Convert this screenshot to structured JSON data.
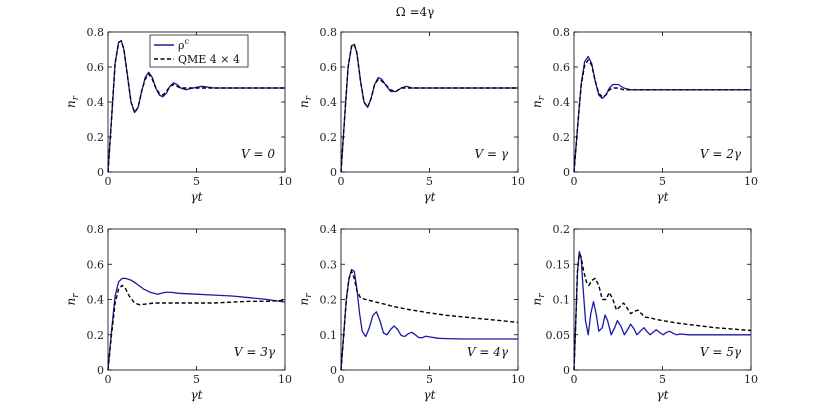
{
  "figure_title": "Ω =4γ",
  "chart_data": [
    {
      "type": "line",
      "annotation": "V = 0",
      "xlabel": "γt",
      "ylabel": "n_r",
      "xlim": [
        0,
        10
      ],
      "ylim": [
        0,
        0.8
      ],
      "xticks": [
        "0",
        "5",
        "10"
      ],
      "yticks": [
        "0",
        "0.2",
        "0.4",
        "0.6",
        "0.8"
      ],
      "legend": {
        "placement": "top-left",
        "entries": [
          "ρ^c",
          "QME 4 × 4"
        ]
      },
      "series": [
        {
          "name": "ρ^c",
          "style": "solid",
          "color": "#1a1aa6",
          "x": [
            0,
            0.2,
            0.4,
            0.6,
            0.75,
            0.9,
            1.1,
            1.3,
            1.5,
            1.7,
            1.9,
            2.1,
            2.3,
            2.5,
            2.7,
            2.9,
            3.1,
            3.3,
            3.5,
            3.7,
            3.9,
            4.1,
            4.4,
            4.8,
            5.3,
            6,
            7,
            8,
            9,
            10
          ],
          "y": [
            0,
            0.3,
            0.62,
            0.74,
            0.75,
            0.7,
            0.55,
            0.4,
            0.34,
            0.37,
            0.46,
            0.54,
            0.57,
            0.54,
            0.48,
            0.44,
            0.43,
            0.45,
            0.49,
            0.51,
            0.5,
            0.48,
            0.47,
            0.48,
            0.49,
            0.48,
            0.48,
            0.48,
            0.48,
            0.48
          ]
        },
        {
          "name": "QME 4 × 4",
          "style": "dashed",
          "color": "#000000",
          "x": [
            0,
            0.2,
            0.4,
            0.6,
            0.75,
            0.9,
            1.1,
            1.3,
            1.5,
            1.7,
            1.9,
            2.1,
            2.3,
            2.5,
            2.7,
            2.9,
            3.1,
            3.3,
            3.5,
            3.7,
            3.9,
            4.1,
            4.4,
            4.8,
            5.3,
            6,
            7,
            8,
            9,
            10
          ],
          "y": [
            0,
            0.3,
            0.62,
            0.74,
            0.75,
            0.7,
            0.55,
            0.4,
            0.34,
            0.37,
            0.46,
            0.53,
            0.56,
            0.53,
            0.48,
            0.45,
            0.44,
            0.46,
            0.49,
            0.5,
            0.49,
            0.48,
            0.48,
            0.48,
            0.48,
            0.48,
            0.48,
            0.48,
            0.48,
            0.48
          ]
        }
      ]
    },
    {
      "type": "line",
      "annotation": "V = γ",
      "xlabel": "γt",
      "ylabel": "n_r",
      "xlim": [
        0,
        10
      ],
      "ylim": [
        0,
        0.8
      ],
      "xticks": [
        "0",
        "5",
        "10"
      ],
      "yticks": [
        "0",
        "0.2",
        "0.4",
        "0.6",
        "0.8"
      ],
      "series": [
        {
          "name": "ρ^c",
          "style": "solid",
          "color": "#1a1aa6",
          "x": [
            0,
            0.2,
            0.4,
            0.6,
            0.75,
            0.9,
            1.1,
            1.3,
            1.5,
            1.7,
            1.9,
            2.1,
            2.3,
            2.5,
            2.8,
            3.1,
            3.4,
            3.7,
            4,
            4.5,
            5,
            6,
            7,
            8,
            9,
            10
          ],
          "y": [
            0,
            0.3,
            0.6,
            0.72,
            0.73,
            0.68,
            0.52,
            0.4,
            0.37,
            0.42,
            0.5,
            0.54,
            0.53,
            0.5,
            0.46,
            0.46,
            0.48,
            0.49,
            0.48,
            0.48,
            0.48,
            0.48,
            0.48,
            0.48,
            0.48,
            0.48
          ]
        },
        {
          "name": "QME 4 × 4",
          "style": "dashed",
          "color": "#000000",
          "x": [
            0,
            0.2,
            0.4,
            0.6,
            0.75,
            0.9,
            1.1,
            1.3,
            1.5,
            1.7,
            1.9,
            2.1,
            2.3,
            2.5,
            2.8,
            3.1,
            3.4,
            3.7,
            4,
            4.5,
            5,
            6,
            7,
            8,
            9,
            10
          ],
          "y": [
            0,
            0.3,
            0.6,
            0.72,
            0.73,
            0.68,
            0.52,
            0.4,
            0.37,
            0.42,
            0.5,
            0.53,
            0.52,
            0.5,
            0.47,
            0.46,
            0.48,
            0.48,
            0.48,
            0.48,
            0.48,
            0.48,
            0.48,
            0.48,
            0.48,
            0.48
          ]
        }
      ]
    },
    {
      "type": "line",
      "annotation": "V = 2γ",
      "xlabel": "γt",
      "ylabel": "n_r",
      "xlim": [
        0,
        10
      ],
      "ylim": [
        0,
        0.8
      ],
      "xticks": [
        "0",
        "5",
        "10"
      ],
      "yticks": [
        "0",
        "0.2",
        "0.4",
        "0.6",
        "0.8"
      ],
      "series": [
        {
          "name": "ρ^c",
          "style": "solid",
          "color": "#1a1aa6",
          "x": [
            0,
            0.2,
            0.4,
            0.6,
            0.8,
            1,
            1.2,
            1.4,
            1.6,
            1.8,
            2,
            2.2,
            2.5,
            2.8,
            3.2,
            3.6,
            4,
            5,
            6,
            7,
            8,
            9,
            10
          ],
          "y": [
            0,
            0.25,
            0.5,
            0.63,
            0.66,
            0.62,
            0.52,
            0.44,
            0.42,
            0.44,
            0.48,
            0.5,
            0.5,
            0.48,
            0.47,
            0.47,
            0.47,
            0.47,
            0.47,
            0.47,
            0.47,
            0.47,
            0.47
          ]
        },
        {
          "name": "QME 4 × 4",
          "style": "dashed",
          "color": "#000000",
          "x": [
            0,
            0.2,
            0.4,
            0.6,
            0.8,
            1,
            1.2,
            1.4,
            1.6,
            1.8,
            2,
            2.2,
            2.5,
            2.8,
            3.2,
            3.6,
            4,
            5,
            6,
            7,
            8,
            9,
            10
          ],
          "y": [
            0,
            0.25,
            0.49,
            0.61,
            0.64,
            0.61,
            0.52,
            0.45,
            0.43,
            0.44,
            0.47,
            0.48,
            0.48,
            0.47,
            0.47,
            0.47,
            0.47,
            0.47,
            0.47,
            0.47,
            0.47,
            0.47,
            0.47
          ]
        }
      ]
    },
    {
      "type": "line",
      "annotation": "V = 3γ",
      "xlabel": "γt",
      "ylabel": "n_r",
      "xlim": [
        0,
        10
      ],
      "ylim": [
        0,
        0.8
      ],
      "xticks": [
        "0",
        "5",
        "10"
      ],
      "yticks": [
        "0",
        "0.2",
        "0.4",
        "0.6",
        "0.8"
      ],
      "series": [
        {
          "name": "ρ^c",
          "style": "solid",
          "color": "#1a1aa6",
          "x": [
            0,
            0.2,
            0.4,
            0.6,
            0.8,
            1,
            1.3,
            1.6,
            2,
            2.4,
            2.8,
            3.2,
            3.6,
            4,
            5,
            6,
            7,
            8,
            9,
            10
          ],
          "y": [
            0,
            0.22,
            0.42,
            0.5,
            0.52,
            0.52,
            0.51,
            0.49,
            0.46,
            0.44,
            0.43,
            0.44,
            0.44,
            0.435,
            0.43,
            0.425,
            0.42,
            0.41,
            0.4,
            0.385
          ]
        },
        {
          "name": "QME 4 × 4",
          "style": "dashed",
          "color": "#000000",
          "x": [
            0,
            0.2,
            0.4,
            0.6,
            0.8,
            1,
            1.2,
            1.5,
            1.8,
            2.2,
            2.6,
            3,
            4,
            5,
            6,
            7,
            8,
            9,
            10
          ],
          "y": [
            0,
            0.2,
            0.38,
            0.46,
            0.48,
            0.46,
            0.42,
            0.38,
            0.37,
            0.375,
            0.38,
            0.38,
            0.38,
            0.38,
            0.38,
            0.385,
            0.39,
            0.39,
            0.395
          ]
        }
      ]
    },
    {
      "type": "line",
      "annotation": "V = 4γ",
      "xlabel": "γt",
      "ylabel": "n_r",
      "xlim": [
        0,
        10
      ],
      "ylim": [
        0,
        0.4
      ],
      "xticks": [
        "0",
        "5",
        "10"
      ],
      "yticks": [
        "0",
        "0.1",
        "0.2",
        "0.3",
        "0.4"
      ],
      "series": [
        {
          "name": "ρ^c",
          "style": "solid",
          "color": "#1a1aa6",
          "x": [
            0,
            0.15,
            0.3,
            0.45,
            0.6,
            0.75,
            0.9,
            1.05,
            1.2,
            1.4,
            1.6,
            1.8,
            2,
            2.2,
            2.4,
            2.6,
            2.8,
            3.0,
            3.2,
            3.4,
            3.6,
            3.8,
            4.0,
            4.2,
            4.4,
            4.6,
            4.8,
            5.0,
            5.5,
            6,
            7,
            8,
            9,
            10
          ],
          "y": [
            0,
            0.1,
            0.2,
            0.26,
            0.285,
            0.28,
            0.23,
            0.16,
            0.11,
            0.095,
            0.12,
            0.155,
            0.165,
            0.14,
            0.105,
            0.1,
            0.115,
            0.125,
            0.115,
            0.098,
            0.095,
            0.103,
            0.107,
            0.1,
            0.092,
            0.092,
            0.096,
            0.094,
            0.09,
            0.089,
            0.088,
            0.088,
            0.088,
            0.088
          ]
        },
        {
          "name": "QME 4 × 4",
          "style": "dashed",
          "color": "#000000",
          "x": [
            0,
            0.15,
            0.3,
            0.45,
            0.6,
            0.75,
            0.9,
            1.1,
            1.4,
            1.8,
            2.2,
            2.6,
            3,
            4,
            5,
            6,
            7,
            8,
            9,
            10
          ],
          "y": [
            0,
            0.1,
            0.2,
            0.26,
            0.28,
            0.26,
            0.225,
            0.205,
            0.2,
            0.195,
            0.19,
            0.185,
            0.18,
            0.17,
            0.162,
            0.155,
            0.15,
            0.145,
            0.14,
            0.135
          ]
        }
      ]
    },
    {
      "type": "line",
      "annotation": "V = 5γ",
      "xlabel": "γt",
      "ylabel": "n_r",
      "xlim": [
        0,
        10
      ],
      "ylim": [
        0,
        0.2
      ],
      "xticks": [
        "0",
        "5",
        "10"
      ],
      "yticks": [
        "0",
        "0.05",
        "0.1",
        "0.15",
        "0.2"
      ],
      "series": [
        {
          "name": "ρ^c",
          "style": "solid",
          "color": "#1a1aa6",
          "x": [
            0,
            0.1,
            0.2,
            0.3,
            0.4,
            0.5,
            0.65,
            0.8,
            0.95,
            1.1,
            1.25,
            1.4,
            1.6,
            1.75,
            1.9,
            2.1,
            2.3,
            2.45,
            2.65,
            2.85,
            3.0,
            3.2,
            3.4,
            3.55,
            3.75,
            3.95,
            4.1,
            4.3,
            4.5,
            4.65,
            4.85,
            5.05,
            5.2,
            5.4,
            5.6,
            5.8,
            6.0,
            6.5,
            7,
            8,
            9,
            10
          ],
          "y": [
            0,
            0.07,
            0.14,
            0.168,
            0.16,
            0.12,
            0.07,
            0.05,
            0.08,
            0.097,
            0.08,
            0.055,
            0.06,
            0.078,
            0.07,
            0.05,
            0.06,
            0.07,
            0.062,
            0.05,
            0.056,
            0.065,
            0.058,
            0.05,
            0.055,
            0.06,
            0.055,
            0.05,
            0.054,
            0.057,
            0.053,
            0.05,
            0.053,
            0.055,
            0.052,
            0.05,
            0.051,
            0.05,
            0.05,
            0.05,
            0.05,
            0.05
          ]
        },
        {
          "name": "QME 4 × 4",
          "style": "dashed",
          "color": "#000000",
          "x": [
            0,
            0.1,
            0.2,
            0.3,
            0.4,
            0.55,
            0.7,
            0.85,
            1.0,
            1.2,
            1.4,
            1.6,
            1.8,
            2.0,
            2.2,
            2.4,
            2.6,
            2.8,
            3.0,
            3.2,
            3.4,
            3.6,
            3.8,
            4.0,
            4.3,
            4.6,
            5,
            5.5,
            6,
            7,
            8,
            9,
            10
          ],
          "y": [
            0,
            0.07,
            0.14,
            0.165,
            0.16,
            0.14,
            0.125,
            0.12,
            0.127,
            0.13,
            0.12,
            0.1,
            0.1,
            0.11,
            0.1,
            0.085,
            0.09,
            0.095,
            0.088,
            0.08,
            0.083,
            0.085,
            0.08,
            0.075,
            0.074,
            0.072,
            0.07,
            0.068,
            0.066,
            0.063,
            0.06,
            0.058,
            0.056
          ]
        }
      ]
    }
  ]
}
